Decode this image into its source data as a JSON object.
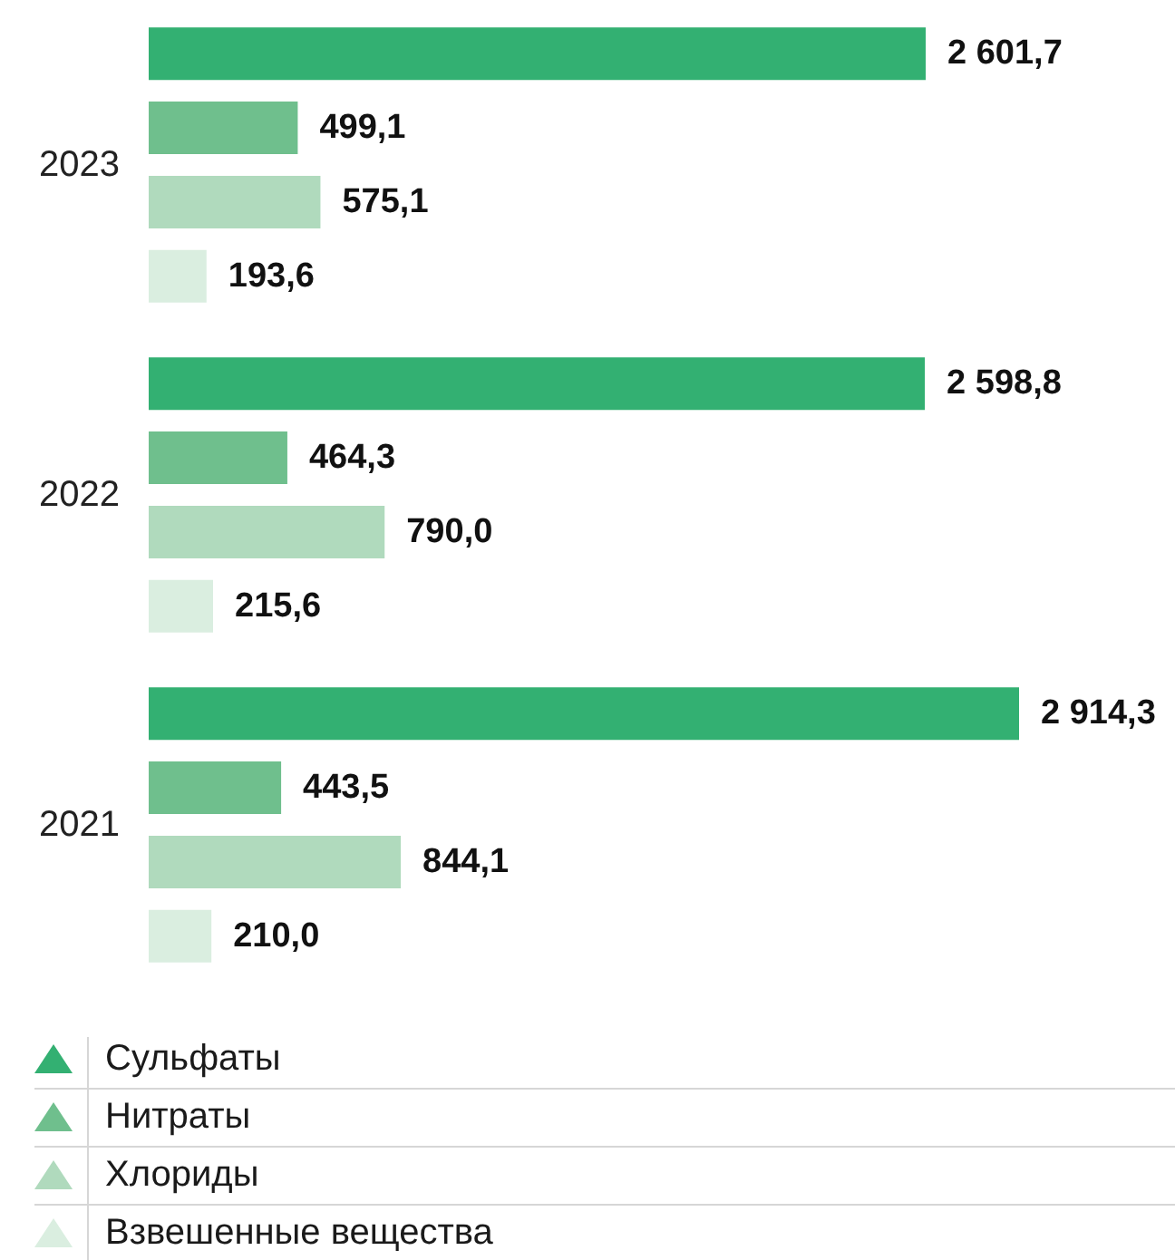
{
  "chart_data": {
    "type": "bar",
    "orientation": "horizontal",
    "categories": [
      "2023",
      "2022",
      "2021"
    ],
    "series": [
      {
        "name": "Сульфаты",
        "color": "#33b072",
        "values": [
          2601.7,
          2598.8,
          2914.3
        ],
        "value_labels": [
          "2 601,7",
          "2 598,8",
          "2 914,3"
        ]
      },
      {
        "name": "Нитраты",
        "color": "#6fbf8d",
        "values": [
          499.1,
          464.3,
          443.5
        ],
        "value_labels": [
          "499,1",
          "464,3",
          "443,5"
        ]
      },
      {
        "name": "Хлориды",
        "color": "#b0dabd",
        "values": [
          575.1,
          790.0,
          844.1
        ],
        "value_labels": [
          "575,1",
          "790,0",
          "844,1"
        ]
      },
      {
        "name": "Взвешенные вещества",
        "color": "#daeee0",
        "values": [
          193.6,
          215.6,
          210.0
        ],
        "value_labels": [
          "193,6",
          "215,6",
          "210,0"
        ]
      }
    ],
    "legend": "bottom left"
  }
}
